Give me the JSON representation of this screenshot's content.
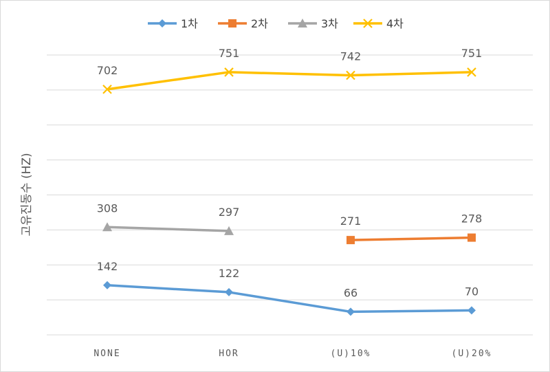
{
  "chart_data": {
    "type": "line",
    "categories": [
      "NONE",
      "HOR",
      "(U)10%",
      "(U)20%"
    ],
    "ylabel": "고유진동수 (HZ)",
    "xlabel": "",
    "title": "",
    "ylim": [
      0,
      800
    ],
    "grid": true,
    "legend_position": "top",
    "series": [
      {
        "name": "1차",
        "color": "#5b9bd5",
        "marker": "diamond",
        "values": [
          142,
          122,
          66,
          70
        ]
      },
      {
        "name": "2차",
        "color": "#ed7d31",
        "marker": "square",
        "values": [
          null,
          null,
          271,
          278
        ]
      },
      {
        "name": "3차",
        "color": "#a5a5a5",
        "marker": "triangle",
        "values": [
          308,
          297,
          null,
          null
        ]
      },
      {
        "name": "4차",
        "color": "#ffc000",
        "marker": "x",
        "values": [
          702,
          751,
          742,
          751
        ]
      }
    ]
  }
}
